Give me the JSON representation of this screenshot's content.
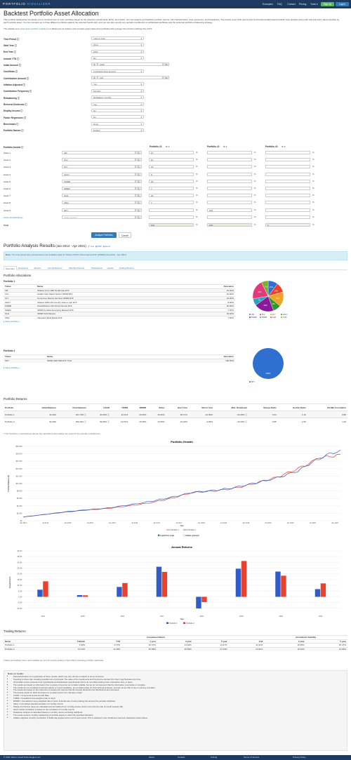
{
  "nav": {
    "brand_a": "PORTFOLIO",
    "brand_b": " VISUALIZER",
    "links": [
      "Examples",
      "FAQ",
      "Contact",
      "Pricing",
      "Tools ▾"
    ],
    "signup": "Sign Up",
    "login": "Log In"
  },
  "page": {
    "title": "Backtest Portfolio Asset Allocation",
    "intro": "This portfolio backtesting tool allows you to construct one or more portfolios based on the selected mutual funds, ETFs, and stocks. You can analyze and backtest portfolio returns, risk characteristics, style exposures, and drawdowns. The results cover both returns and fund fundamentals based portfolio style analysis along with risk and return decomposition by each portfolio asset. You can compare up to three different portfolios against the selected benchmark, and you can also specify any periodic contribution or withdrawal cashflows and the preferred portfolio rebalancing strategy.",
    "related_a": "The related ",
    "related_link": "asset class level portfolio modeling tool",
    "related_b": " allows you to analyze and compare asset class level portfolios with a longer time horizon starting from 1972."
  },
  "form": [
    {
      "label": "Time Period",
      "value": "Year-to-Year"
    },
    {
      "label": "Start Year",
      "value": "2014"
    },
    {
      "label": "End Year",
      "value": "2021"
    },
    {
      "label": "Include YTD",
      "value": "No"
    },
    {
      "label": "Initial Amount",
      "value": "1000",
      "prefix": "$",
      "suffix": ".00"
    },
    {
      "label": "Cashflows",
      "value": "Contribute fixed amount"
    },
    {
      "label": "Contribution Amount",
      "value": "100",
      "prefix": "$",
      "suffix": ".00"
    },
    {
      "label": "Inflation Adjusted",
      "value": "Yes"
    },
    {
      "label": "Contribution Frequency",
      "value": "Monthly"
    },
    {
      "label": "Rebalancing",
      "value": "Rebalance monthly"
    },
    {
      "label": "Reinvest Dividends",
      "value": "Yes"
    },
    {
      "label": "Display Income",
      "value": "No"
    },
    {
      "label": "Factor Regression",
      "value": "No"
    },
    {
      "label": "Benchmark",
      "value": "None"
    },
    {
      "label": "Portfolio Names",
      "value": "Default"
    }
  ],
  "assets": {
    "header": "Portfolio Assets",
    "p1": "Portfolio #1",
    "p2": "Portfolio #2",
    "p3": "Portfolio #3",
    "gear": "⚙ ▾",
    "rows": [
      {
        "label": "Asset 1",
        "ticker": "IJR",
        "p1": "10",
        "p2": "",
        "p3": ""
      },
      {
        "label": "Asset 2",
        "ticker": "XLV",
        "p1": "10",
        "p2": "",
        "p3": ""
      },
      {
        "label": "Asset 3",
        "ticker": "XLY",
        "p1": "15",
        "p2": "",
        "p3": ""
      },
      {
        "label": "Asset 4",
        "ticker": "AAXJ",
        "p1": "8",
        "p2": "",
        "p3": ""
      },
      {
        "label": "Asset 5",
        "ticker": "KWEB",
        "p1": "20",
        "p2": "",
        "p3": ""
      },
      {
        "label": "Asset 6",
        "ticker": "SPEM",
        "p1": "7",
        "p2": "",
        "p3": ""
      },
      {
        "label": "Asset 7",
        "ticker": "GLD",
        "p1": "20",
        "p2": "",
        "p3": ""
      },
      {
        "label": "Asset 8",
        "ticker": "VNQ",
        "p1": "7",
        "p2": "",
        "p3": ""
      },
      {
        "label": "Asset 9",
        "ticker": "SPY",
        "p1": "",
        "p2": "100",
        "p3": ""
      },
      {
        "label": "Asset 10",
        "ticker": "Ticker symbol",
        "p1": "",
        "p2": "",
        "p3": ""
      }
    ],
    "add_more": "Asset 10 (Add More)",
    "total_label": "Total",
    "totals": [
      "100",
      "100",
      "0"
    ]
  },
  "buttons": {
    "analyze": "Analyze Portfolios",
    "cancel": "Cancel"
  },
  "results": {
    "title": "Portfolio Analysis Results",
    "range": " (Jan 2014 - Apr 2021)",
    "links": [
      "🔗 Link",
      "▤ PDF",
      "▤ Excel"
    ],
    "note_b": "Note:",
    "note": " The time period was constrained by the available data for iShares MSCI China Internet ETF (KWEB) [Aug 2013 - Apr 2021].",
    "tabs": [
      "Summary",
      "Exposures",
      "Metrics",
      "Annual Returns",
      "Monthly Returns",
      "Drawdowns",
      "Assets",
      "Rolling Returns"
    ]
  },
  "alloc": {
    "title": "Portfolio Allocations",
    "p1": "Portfolio 1",
    "p2": "Portfolio 2",
    "cols": [
      "Ticker",
      "Name",
      "Allocation"
    ],
    "rows1": [
      [
        "IJR",
        "iShares Core S&P Small-Cap ETF",
        "10.00%"
      ],
      [
        "XLV",
        "Health Care Select Sector SPDR ETF",
        "10.00%"
      ],
      [
        "XLY",
        "Consumer Discret Sel Sect SPDR ETF",
        "15.00%"
      ],
      [
        "AAXJ",
        "iShares MSCI All Country Asia ex Jpn ETF",
        "8.00%"
      ],
      [
        "KWEB",
        "KraneShares CSI China Internet ETF",
        "20.00%"
      ],
      [
        "SPEM",
        "SPDR Portfolio Emerging Markets ETF",
        "7.00%"
      ],
      [
        "GLD",
        "SPDR Gold Shares",
        "20.00%"
      ],
      [
        "VNQ",
        "Vanguard Real Estate ETF",
        "7.00%"
      ]
    ],
    "rows2": [
      [
        "SPY",
        "SPDR S&P 500 ETF Trust",
        "100.00%"
      ]
    ],
    "save": "▸ Save portfolio »",
    "pie1": [
      {
        "name": "IJR",
        "v": 10,
        "c": "#2f6fd0"
      },
      {
        "name": "XLV",
        "v": 10,
        "c": "#e8412e"
      },
      {
        "name": "XLY",
        "v": 15,
        "c": "#f0a22a"
      },
      {
        "name": "AAXJ",
        "v": 8,
        "c": "#2a9a2a"
      },
      {
        "name": "KWEB",
        "v": 20,
        "c": "#8a1a9a"
      },
      {
        "name": "SPEM",
        "v": 7,
        "c": "#2aa0c0"
      },
      {
        "name": "GLD",
        "v": 20,
        "c": "#e03a7a"
      },
      {
        "name": "VNQ",
        "v": 7,
        "c": "#7ab02a"
      }
    ],
    "pie1_labels": [
      "10%",
      "10%",
      "15%",
      "8%",
      "20%",
      "7%",
      "20%",
      "7%"
    ],
    "pie2": [
      {
        "name": "SPY",
        "v": 100,
        "c": "#2f6fd0"
      }
    ],
    "pie2_label": "100%"
  },
  "returns": {
    "title": "Portfolio Returns",
    "cols": [
      "Portfolio",
      "Initial Balance",
      "Final Balance",
      "CAGR",
      "TWRR",
      "MWRR",
      "Stdev",
      "Best Year",
      "Worst Year",
      "Max. Drawdown",
      "Sharpe Ratio",
      "Sortino Ratio",
      "US Mkt Correlation"
    ],
    "rows": [
      [
        "Portfolio 1",
        "$1,000",
        "$17,799 ⓘ",
        "40.66% ⓘ",
        "11.61%",
        "13.65%",
        "15.22%",
        "26.17%",
        "-10.09%",
        "-15.49% ⓘ",
        "0.64",
        "1.16",
        "0.85"
      ],
      [
        "Portfolio 2",
        "$1,000",
        "$19,022 ⓘ",
        "39.06% ⓘ",
        "13.91%",
        "16.09%",
        "13.99%",
        "31.22%",
        "-4.56%",
        "-19.43% ⓘ",
        "0.95",
        "1.50",
        "1.00"
      ]
    ],
    "dd_sub": [
      "(-15.49%)",
      "(-17.82%)"
    ],
    "footnote": "* The numbers in parentheses denote the calculated value taking into account the periodic contributions."
  },
  "growth": {
    "title": "Portfolio Growth",
    "ylabel": "Portfolio Balance ($)",
    "xlabel": "Year",
    "legend": [
      "Portfolio 1",
      "Portfolio 2"
    ],
    "log_label": "Logarithmic scale",
    "infl_label": "Inflation adjusted",
    "yticks": [
      "$20,000",
      "$18,000",
      "$16,000",
      "$14,000",
      "$12,000",
      "$10,000",
      "$8,000",
      "$6,000",
      "$4,000",
      "$2,000",
      "$0"
    ],
    "xticks": [
      "Jan 2014",
      "Jul 2014",
      "Jan 2015",
      "Jul 2015",
      "Jan 2016",
      "Jul 2016",
      "Jan 2017",
      "Jul 2017",
      "Jan 2018",
      "Jul 2018",
      "Jan 2019",
      "Jul 2019",
      "Jan 2020",
      "Jul 2020",
      "Jan 2021"
    ]
  },
  "chart_data": [
    {
      "type": "line",
      "title": "Portfolio Growth",
      "xlabel": "Year",
      "ylabel": "Portfolio Balance ($)",
      "ylim": [
        0,
        20000
      ],
      "x": [
        "2014-01",
        "2014-07",
        "2015-01",
        "2015-07",
        "2016-01",
        "2016-07",
        "2017-01",
        "2017-07",
        "2018-01",
        "2018-07",
        "2019-01",
        "2019-07",
        "2020-01",
        "2020-07",
        "2021-01",
        "2021-04"
      ],
      "series": [
        {
          "name": "Portfolio 1",
          "color": "#e8412e",
          "values": [
            1000,
            1650,
            2300,
            2850,
            3300,
            4000,
            4800,
            6000,
            7600,
            8000,
            8700,
            10100,
            11700,
            14000,
            16800,
            17800
          ]
        },
        {
          "name": "Portfolio 2",
          "color": "#2f5cc8",
          "values": [
            1000,
            1680,
            2400,
            2950,
            3400,
            4250,
            5150,
            6300,
            7600,
            8100,
            8900,
            10200,
            11500,
            13400,
            16900,
            19000
          ]
        }
      ]
    },
    {
      "type": "bar",
      "title": "Annual Returns",
      "xlabel": "Year",
      "ylabel": "Annual Return",
      "ylim": [
        -15,
        40
      ],
      "categories": [
        "2014",
        "2015",
        "2016",
        "2017",
        "2018",
        "2019",
        "2020",
        "2021"
      ],
      "yticks": [
        "40.0%",
        "35.0%",
        "30.0%",
        "25.0%",
        "20.0%",
        "15.0%",
        "10.0%",
        "5.0%",
        "0.0%",
        "-5.0%",
        "-10.0%"
      ],
      "series": [
        {
          "name": "Portfolio 1",
          "color": "#2f5cc8",
          "values": [
            6.2,
            1.5,
            8.6,
            26.2,
            -10.1,
            24.5,
            22.0,
            6.7
          ]
        },
        {
          "name": "Portfolio 2",
          "color": "#e8412e",
          "values": [
            13.5,
            1.3,
            12.0,
            21.7,
            -4.6,
            31.2,
            18.4,
            11.7
          ]
        }
      ]
    }
  ],
  "trailing": {
    "title": "Trailing Returns",
    "group1": "Annualized Return",
    "group2": "Annualized Volatility",
    "cols": [
      "Name",
      "3 Month",
      "YTD",
      "1 year",
      "3 year",
      "5 year",
      "Full",
      "3 year",
      "5 year"
    ],
    "rows": [
      [
        "Portfolio 1",
        "2.93%",
        "5.70%",
        "42.37%",
        "14.04%",
        "14.37%",
        "11.61%",
        "16.09%",
        "15.47%"
      ],
      [
        "Portfolio 2",
        "10.12%",
        "11.39%",
        "45.98%",
        "16.69%",
        "17.34%",
        "13.91%",
        "16.42%",
        "14.99%"
      ]
    ],
    "footnote": "Trailing annualized return and volatility are for full months ending in April 2021 excluding portfolio cashflows"
  },
  "notes": {
    "title": "Notes on results:",
    "items": [
      "Past performance is no guarantee of future results, which may vary. All use is subject to terms of service.",
      "Investing involves risk, including possible loss of principal. The value of the investments and the income derived from them may fluctuate over time.",
      "All portfolio returns presented are hypothetical and backtested. Hypothetical returns do not reflect trading costs, transaction fees, or taxes.",
      "The results are based on information from a variety of sources we consider reliable, but we do not represent that the information is accurate or complete.",
      "The results do not constitute investment advice or recommendation, are provided solely for informational purposes, and are not an offer to buy or sell any securities.",
      "The results are based on the total return of assets and assume that all received dividends and distributions are reinvested.",
      "The annual results for 2021 are based on monthly returns from January to April",
      "CAGR = Compound Annual Growth Rate",
      "TWRR = Annualized time-weighted rate of return",
      "MWRR = Annualized money-weighted rate of return (internal rate of return) taking into account the periodic cashflows",
      "Stdev = Annualized standard deviation of monthly returns",
      "Sharpe and Sortino ratios are calculated and annualized from monthly excess returns over risk free rate (3-month treasury bill)",
      "Stock market correlation is based on the correlation of monthly returns",
      "Drawdown analysis is calculated based on monthly returns excluding cashflows",
      "The results assume monthly rebalancing of portfolio assets to match the specified allocation",
      "Inflation adjusted monthly contribution of $100 was applied at the end of each period. This is reflected in the CAGR and maximum drawdown shown above"
    ]
  },
  "footer": {
    "copy": "© 2021 Silicon Cloud Technologies LLC",
    "links": [
      "About",
      "Contact",
      "Pricing",
      "Terms of Service",
      "Privacy Policy"
    ]
  }
}
